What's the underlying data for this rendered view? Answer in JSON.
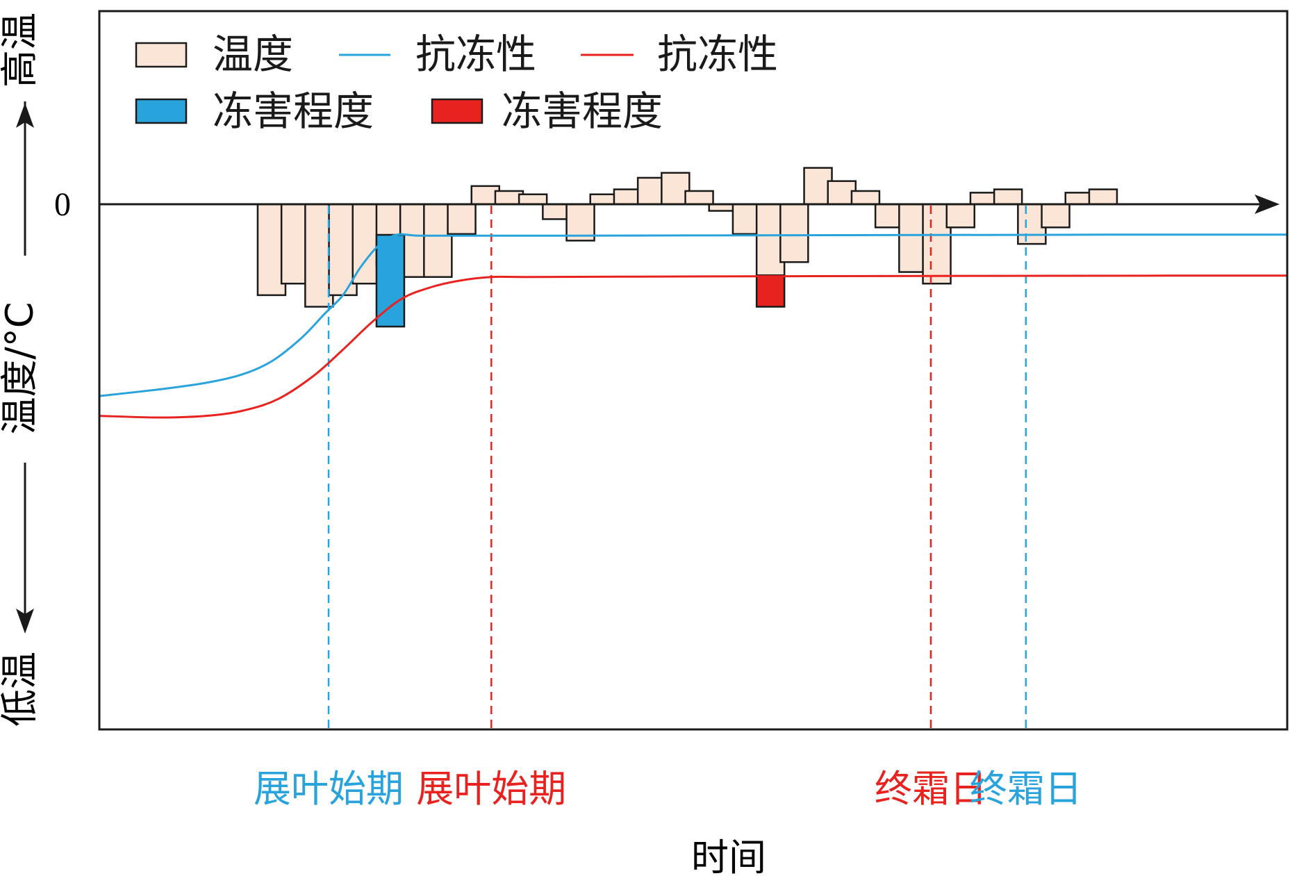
{
  "chart_data": {
    "type": "bar",
    "title": "",
    "xlabel": "时间",
    "ylabel": "温度/°C",
    "y_top_label": "高温",
    "y_bottom_label": "低温",
    "y_zero_tick": "0",
    "grid": false,
    "legend_position": "top-left",
    "legend": {
      "temperature_label": "温度",
      "hardiness_blue_label": "抗冻性",
      "hardiness_red_label": "抗冻性",
      "damage_blue_label": "冻害程度",
      "damage_red_label": "冻害程度"
    },
    "colors": {
      "temperature_fill": "#fae5d7",
      "bar_edge": "#1a1a1a",
      "blue": "#29a3dc",
      "red": "#e8231f",
      "axis": "#1a1a1a"
    },
    "axis_range": {
      "time": [
        0,
        100
      ],
      "temperature": [
        -100,
        40
      ]
    },
    "temperature": [
      {
        "time": 14.5,
        "value": -55
      },
      {
        "time": 16.5,
        "value": -48
      },
      {
        "time": 18.5,
        "value": -62
      },
      {
        "time": 20.5,
        "value": -55
      },
      {
        "time": 22.5,
        "value": -48
      },
      {
        "time": 24.5,
        "value": -37
      },
      {
        "time": 26.5,
        "value": -44
      },
      {
        "time": 28.5,
        "value": -44
      },
      {
        "time": 30.5,
        "value": -18
      },
      {
        "time": 32.5,
        "value": 11
      },
      {
        "time": 34.5,
        "value": 8
      },
      {
        "time": 36.5,
        "value": 6
      },
      {
        "time": 38.5,
        "value": -9
      },
      {
        "time": 40.5,
        "value": -22
      },
      {
        "time": 42.5,
        "value": 6
      },
      {
        "time": 44.5,
        "value": 9
      },
      {
        "time": 46.5,
        "value": 16
      },
      {
        "time": 48.5,
        "value": 19
      },
      {
        "time": 50.5,
        "value": 8
      },
      {
        "time": 52.5,
        "value": -4
      },
      {
        "time": 54.5,
        "value": -18
      },
      {
        "time": 56.5,
        "value": -43
      },
      {
        "time": 58.5,
        "value": -35
      },
      {
        "time": 60.5,
        "value": 22
      },
      {
        "time": 62.5,
        "value": 14
      },
      {
        "time": 64.5,
        "value": 8
      },
      {
        "time": 66.5,
        "value": -14
      },
      {
        "time": 68.5,
        "value": -41
      },
      {
        "time": 70.5,
        "value": -48
      },
      {
        "time": 72.5,
        "value": -14
      },
      {
        "time": 74.5,
        "value": 7
      },
      {
        "time": 76.5,
        "value": 9
      },
      {
        "time": 78.5,
        "value": -24
      },
      {
        "time": 80.5,
        "value": -14
      },
      {
        "time": 82.5,
        "value": 7
      },
      {
        "time": 84.5,
        "value": 9
      }
    ],
    "hardiness_blue": [
      [
        0,
        -116
      ],
      [
        5,
        -112
      ],
      [
        9,
        -108
      ],
      [
        12,
        -103
      ],
      [
        14.5,
        -95
      ],
      [
        17,
        -81
      ],
      [
        19,
        -66
      ],
      [
        20.5,
        -55
      ],
      [
        22,
        -38
      ],
      [
        23.5,
        -25
      ],
      [
        25,
        -18.5
      ],
      [
        27,
        -19
      ],
      [
        33,
        -19
      ],
      [
        40,
        -19
      ],
      [
        55,
        -18.8
      ],
      [
        70,
        -18.6
      ],
      [
        85,
        -18.4
      ],
      [
        100,
        -18.4
      ]
    ],
    "hardiness_red": [
      [
        0,
        -128
      ],
      [
        5,
        -129
      ],
      [
        9,
        -128
      ],
      [
        12,
        -125
      ],
      [
        15,
        -118
      ],
      [
        18,
        -104
      ],
      [
        20.5,
        -88
      ],
      [
        23,
        -71
      ],
      [
        25.5,
        -57
      ],
      [
        28,
        -50
      ],
      [
        30.5,
        -46
      ],
      [
        33,
        -44
      ],
      [
        36,
        -44
      ],
      [
        45,
        -43.8
      ],
      [
        60,
        -43.5
      ],
      [
        75,
        -43.3
      ],
      [
        90,
        -43.2
      ],
      [
        100,
        -43.2
      ]
    ],
    "damage_blue": {
      "time": 24.5,
      "from": -18.5,
      "to": -74
    },
    "damage_red": {
      "time": 56.5,
      "from": -43,
      "to": -62
    },
    "markers": [
      {
        "label": "展叶始期",
        "time": 19.3,
        "color": "blue"
      },
      {
        "label": "展叶始期",
        "time": 33,
        "color": "red"
      },
      {
        "label": "终霜日",
        "time": 70,
        "color": "red"
      },
      {
        "label": "终霜日",
        "time": 78,
        "color": "blue"
      }
    ]
  }
}
